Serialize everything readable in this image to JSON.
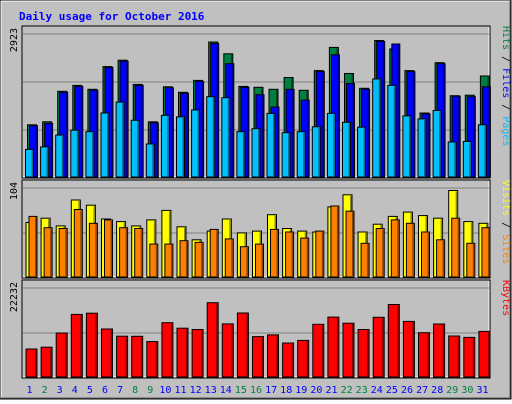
{
  "chart_data": {
    "type": "bar",
    "title": "Daily usage for October 2016",
    "x": [
      "1",
      "2",
      "3",
      "4",
      "5",
      "6",
      "7",
      "8",
      "9",
      "10",
      "11",
      "12",
      "13",
      "14",
      "15",
      "16",
      "17",
      "18",
      "19",
      "20",
      "21",
      "22",
      "23",
      "24",
      "25",
      "26",
      "27",
      "28",
      "29",
      "30",
      "31"
    ],
    "x_weekend": [
      false,
      true,
      false,
      false,
      false,
      false,
      false,
      true,
      true,
      false,
      false,
      false,
      false,
      false,
      true,
      true,
      false,
      false,
      false,
      false,
      false,
      true,
      true,
      false,
      false,
      false,
      false,
      false,
      true,
      true,
      false
    ],
    "panels": [
      {
        "name": "traffic",
        "max_label": "2923",
        "ylim": [
          0,
          2923
        ],
        "series_labels": [
          "Pages",
          "Files",
          "Hits"
        ],
        "series": [
          {
            "name": "Hits",
            "values": [
              1060,
              1120,
              1740,
              1860,
              1780,
              2240,
              2370,
              1880,
              1120,
              1830,
              1720,
              1960,
              2740,
              2500,
              1840,
              1820,
              1780,
              2020,
              1760,
              2160,
              2630,
              2100,
              1800,
              2770,
              2600,
              2160,
              1300,
              2320,
              1650,
              1660,
              2050
            ]
          },
          {
            "name": "Files",
            "values": [
              1040,
              1090,
              1720,
              1840,
              1760,
              2220,
              2350,
              1860,
              1100,
              1810,
              1700,
              1940,
              2710,
              2300,
              1820,
              1670,
              1420,
              1780,
              1560,
              2140,
              2480,
              1900,
              1780,
              2750,
              2700,
              2140,
              1280,
              2300,
              1640,
              1630,
              1830
            ]
          },
          {
            "name": "Pages",
            "values": [
              560,
              610,
              850,
              950,
              920,
              1300,
              1520,
              1150,
              670,
              1250,
              1220,
              1360,
              1630,
              1610,
              920,
              980,
              1290,
              900,
              920,
              1020,
              1290,
              1110,
              1010,
              1990,
              1860,
              1240,
              1180,
              1350,
              710,
              720,
              1060
            ]
          }
        ]
      },
      {
        "name": "visitors",
        "max_label": "104",
        "ylim": [
          0,
          104
        ],
        "series_labels": [
          "Sites",
          "Visits"
        ],
        "series": [
          {
            "name": "Visits",
            "values": [
              63,
              68,
              59,
              89,
              83,
              67,
              64,
              59,
              66,
              77,
              58,
              43,
              53,
              67,
              51,
              53,
              72,
              56,
              53,
              52,
              81,
              95,
              52,
              61,
              70,
              75,
              71,
              68,
              100,
              64,
              62
            ]
          },
          {
            "name": "Sites",
            "values": [
              70,
              57,
              56,
              78,
              62,
              66,
              57,
              56,
              38,
              38,
              42,
              40,
              55,
              44,
              35,
              38,
              55,
              52,
              45,
              53,
              82,
              76,
              39,
              56,
              66,
              62,
              52,
              43,
              68,
              39,
              57
            ]
          }
        ]
      },
      {
        "name": "volume",
        "max_label": "22232",
        "ylim": [
          0,
          22232
        ],
        "series_labels": [
          "KBytes"
        ],
        "series": [
          {
            "name": "KBytes",
            "values": [
              6920,
              7360,
              10860,
              15460,
              15770,
              11860,
              10080,
              10050,
              8740,
              13410,
              12050,
              11730,
              18360,
              13110,
              15810,
              9990,
              10390,
              8410,
              9050,
              13020,
              14790,
              13300,
              11730,
              14750,
              17900,
              13730,
              10940,
              13090,
              10140,
              9790,
              11270
            ]
          }
        ]
      }
    ]
  },
  "colors": {
    "background": "#c0c0c0",
    "border_dark": "#606060",
    "title": "#0000ff",
    "hits": "#008040",
    "files": "#0000ff",
    "pages": "#00c0ff",
    "visits": "#ffff00",
    "sites": "#ff8000",
    "kbytes": "#ff0000",
    "day_weekday": "#0000ff",
    "day_weekend": "#008040",
    "gridline": "#808080"
  }
}
